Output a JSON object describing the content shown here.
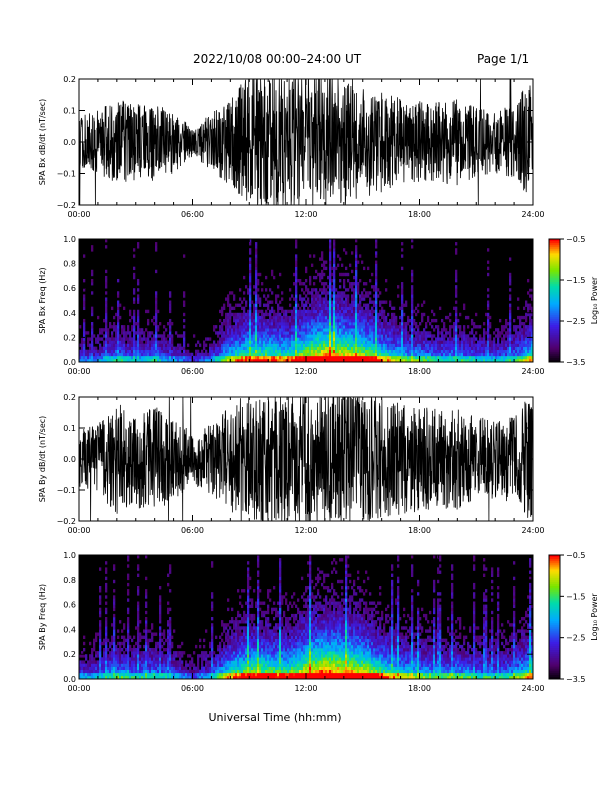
{
  "header": {
    "title": "2022/10/08  00:00–24:00 UT",
    "page": "Page 1/1"
  },
  "chart_data": [
    {
      "type": "line",
      "id": "bx-ts",
      "ylabel": "SPA Bx dB/dt (nT/sec)",
      "xlabel": "",
      "xlim": [
        0,
        24
      ],
      "ylim": [
        -0.2,
        0.2
      ],
      "xticks": [
        "00:00",
        "06:00",
        "12:00",
        "18:00",
        "24:00"
      ],
      "yticks": [
        "−0.2",
        "−0.1",
        "0.0",
        "0.1",
        "0.2"
      ],
      "series": [
        {
          "x": [
            0,
            1,
            2,
            3,
            4,
            5,
            6,
            7,
            8,
            9,
            10,
            11,
            12,
            13,
            14,
            15,
            16,
            17,
            18,
            19,
            20,
            21,
            22,
            23,
            24
          ],
          "amplitude": [
            0.08,
            0.1,
            0.14,
            0.12,
            0.13,
            0.1,
            0.05,
            0.09,
            0.14,
            0.22,
            0.22,
            0.22,
            0.22,
            0.22,
            0.2,
            0.18,
            0.16,
            0.14,
            0.13,
            0.13,
            0.14,
            0.11,
            0.1,
            0.12,
            0.22
          ]
        }
      ]
    },
    {
      "type": "heatmap",
      "id": "bx-spec",
      "ylabel": "SPA Bx Freq (Hz)",
      "xlabel": "",
      "xlim": [
        0,
        24
      ],
      "ylim": [
        0,
        1
      ],
      "xticks": [
        "00:00",
        "06:00",
        "12:00",
        "18:00",
        "24:00"
      ],
      "yticks": [
        "0.0",
        "0.2",
        "0.4",
        "0.6",
        "0.8",
        "1.0"
      ],
      "colorbar": {
        "label": "Log₁₀ Power",
        "range": [
          -3.5,
          -0.5
        ],
        "ticks": [
          "−0.5",
          "−1.5",
          "−2.5",
          "−3.5"
        ]
      },
      "activity": [
        0.25,
        0.3,
        0.4,
        0.35,
        0.38,
        0.3,
        0.18,
        0.3,
        0.55,
        0.65,
        0.65,
        0.6,
        0.75,
        0.85,
        0.8,
        0.75,
        0.6,
        0.5,
        0.45,
        0.4,
        0.42,
        0.38,
        0.35,
        0.4,
        0.6
      ]
    },
    {
      "type": "line",
      "id": "by-ts",
      "ylabel": "SPA By dB/dt (nT/sec)",
      "xlabel": "",
      "xlim": [
        0,
        24
      ],
      "ylim": [
        -0.2,
        0.2
      ],
      "xticks": [
        "00:00",
        "06:00",
        "12:00",
        "18:00",
        "24:00"
      ],
      "yticks": [
        "−0.2",
        "−0.1",
        "0.0",
        "0.1",
        "0.2"
      ],
      "series": [
        {
          "x": [
            0,
            1,
            2,
            3,
            4,
            5,
            6,
            7,
            8,
            9,
            10,
            11,
            12,
            13,
            14,
            15,
            16,
            17,
            18,
            19,
            20,
            21,
            22,
            23,
            24
          ],
          "amplitude": [
            0.09,
            0.12,
            0.18,
            0.16,
            0.17,
            0.14,
            0.08,
            0.12,
            0.17,
            0.22,
            0.22,
            0.22,
            0.22,
            0.22,
            0.22,
            0.21,
            0.2,
            0.18,
            0.17,
            0.16,
            0.17,
            0.14,
            0.13,
            0.14,
            0.22
          ]
        }
      ]
    },
    {
      "type": "heatmap",
      "id": "by-spec",
      "ylabel": "SPA By Freq (Hz)",
      "xlabel": "Universal Time (hh:mm)",
      "xlim": [
        0,
        24
      ],
      "ylim": [
        0,
        1
      ],
      "xticks": [
        "00:00",
        "06:00",
        "12:00",
        "18:00",
        "24:00"
      ],
      "yticks": [
        "0.0",
        "0.2",
        "0.4",
        "0.6",
        "0.8",
        "1.0"
      ],
      "colorbar": {
        "label": "Log₁₀ Power",
        "range": [
          -3.5,
          -0.5
        ],
        "ticks": [
          "−0.5",
          "−1.5",
          "−2.5",
          "−3.5"
        ]
      },
      "activity": [
        0.3,
        0.35,
        0.45,
        0.4,
        0.42,
        0.35,
        0.22,
        0.35,
        0.6,
        0.7,
        0.7,
        0.65,
        0.8,
        0.9,
        0.85,
        0.8,
        0.65,
        0.55,
        0.5,
        0.45,
        0.47,
        0.42,
        0.4,
        0.45,
        0.65
      ]
    }
  ]
}
